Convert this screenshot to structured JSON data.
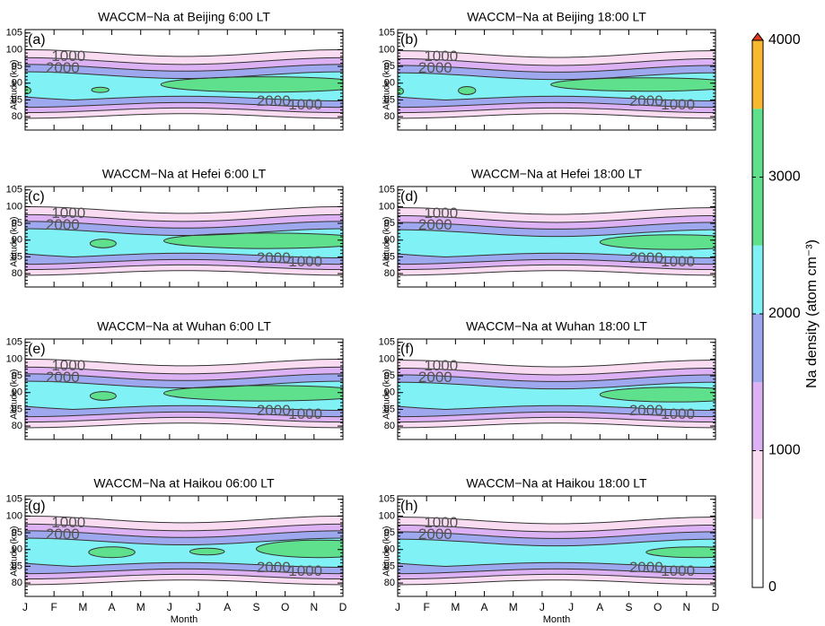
{
  "chart_data": [
    {
      "type": "contour",
      "title": "WACCM−Na at Beijing 6:00 LT",
      "panel_label": "(a)",
      "ylabel": "Altitude (km)",
      "ylim": [
        76,
        106
      ],
      "yticks": [
        80,
        85,
        90,
        95,
        100,
        105
      ],
      "contour_labels": [
        1000,
        2000,
        2000,
        1000
      ]
    },
    {
      "type": "contour",
      "title": "WACCM−Na at Beijing 18:00 LT",
      "panel_label": "(b)",
      "ylabel": "Altitude (km)",
      "ylim": [
        76,
        106
      ],
      "yticks": [
        80,
        85,
        90,
        95,
        100,
        105
      ],
      "contour_labels": [
        1000,
        2000,
        2000,
        1000
      ]
    },
    {
      "type": "contour",
      "title": "WACCM−Na at Hefei 6:00 LT",
      "panel_label": "(c)",
      "ylabel": "Altitude (km)",
      "ylim": [
        76,
        106
      ],
      "yticks": [
        80,
        85,
        90,
        95,
        100,
        105
      ],
      "contour_labels": [
        1000,
        2000,
        2000,
        1000
      ]
    },
    {
      "type": "contour",
      "title": "WACCM−Na at Hefei 18:00 LT",
      "panel_label": "(d)",
      "ylabel": "Altitude (km)",
      "ylim": [
        76,
        106
      ],
      "yticks": [
        80,
        85,
        90,
        95,
        100,
        105
      ],
      "contour_labels": [
        1000,
        2000,
        2000,
        1000
      ]
    },
    {
      "type": "contour",
      "title": "WACCM−Na at Wuhan 6:00 LT",
      "panel_label": "(e)",
      "ylabel": "Altitude (km)",
      "ylim": [
        76,
        106
      ],
      "yticks": [
        80,
        85,
        90,
        95,
        100,
        105
      ],
      "contour_labels": [
        1000,
        2000,
        2000,
        1000
      ]
    },
    {
      "type": "contour",
      "title": "WACCM−Na at Wuhan 18:00 LT",
      "panel_label": "(f)",
      "ylabel": "Altitude (km)",
      "ylim": [
        76,
        106
      ],
      "yticks": [
        80,
        85,
        90,
        95,
        100,
        105
      ],
      "contour_labels": [
        1000,
        2000,
        2000,
        1000
      ]
    },
    {
      "type": "contour",
      "title": "WACCM−Na at Haikou 06:00 LT",
      "panel_label": "(g)",
      "ylabel": "Altitude (km)",
      "ylim": [
        76,
        106
      ],
      "yticks": [
        80,
        85,
        90,
        95,
        100,
        105
      ],
      "contour_labels": [
        1000,
        2000,
        2000,
        1000
      ],
      "categories": [
        "J",
        "F",
        "M",
        "A",
        "M",
        "J",
        "J",
        "A",
        "S",
        "O",
        "N",
        "D"
      ],
      "xlabel": "Month"
    },
    {
      "type": "contour",
      "title": "WACCM−Na at Haikou 18:00 LT",
      "panel_label": "(h)",
      "ylabel": "Altitude (km)",
      "ylim": [
        76,
        106
      ],
      "yticks": [
        80,
        85,
        90,
        95,
        100,
        105
      ],
      "contour_labels": [
        1000,
        2000,
        2000,
        1000
      ],
      "categories": [
        "J",
        "F",
        "M",
        "A",
        "M",
        "J",
        "J",
        "A",
        "S",
        "O",
        "N",
        "D"
      ],
      "xlabel": "Month"
    },
    {
      "type": "colorbar",
      "label": "Na density (atom cm⁻³)",
      "levels": [
        0,
        500,
        1000,
        1500,
        2000,
        2500,
        3000,
        3500,
        4000
      ],
      "colors": [
        "#ffffff",
        "#fadcf2",
        "#dcb2f4",
        "#9ea8ee",
        "#80f2f6",
        "#5ee08c",
        "#5ee08c",
        "#f8b830"
      ],
      "ylim": [
        0,
        4000
      ],
      "yticks": [
        0,
        1000,
        2000,
        3000,
        4000
      ]
    }
  ]
}
